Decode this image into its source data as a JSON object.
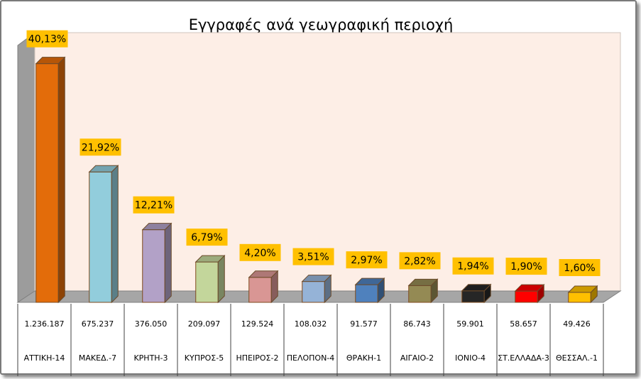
{
  "chart_data": {
    "type": "bar",
    "title": "Εγγραφές ανά γεωγραφική περιοχή",
    "categories": [
      "ΑΤΤΙΚΗ-14",
      "ΜΑΚΕΔ.-7",
      "ΚΡΗΤΗ-3",
      "ΚΥΠΡΟΣ-5",
      "ΗΠΕΙΡΟΣ-2",
      "ΠΕΛΟΠΟΝ-4",
      "ΘΡΑΚΗ-1",
      "ΑΙΓΑΙΟ-2",
      "ΙΟΝΙΟ-4",
      "ΣΤ.ΕΛΛΑΔΑ-3",
      "ΘΕΣΣΑΛ.-1"
    ],
    "values": [
      40.13,
      21.92,
      12.21,
      6.79,
      4.2,
      3.51,
      2.97,
      2.82,
      1.94,
      1.9,
      1.6
    ],
    "value_labels": [
      "40,13%",
      "21,92%",
      "12,21%",
      "6,79%",
      "4,20%",
      "3,51%",
      "2,97%",
      "2,82%",
      "1,94%",
      "1,90%",
      "1,60%"
    ],
    "table_row": [
      "1.236.187",
      "675.237",
      "376.050",
      "209.097",
      "129.524",
      "108.032",
      "91.577",
      "86.743",
      "59.901",
      "58.657",
      "49.426"
    ],
    "ylim": [
      0,
      42
    ],
    "bar_colors": [
      "#e36c0a",
      "#92cddc",
      "#b2a1c7",
      "#c3d69b",
      "#d99694",
      "#95b3d7",
      "#4f81bd",
      "#948a54",
      "#262626",
      "#ff0000",
      "#ffc000"
    ],
    "label_box_color": "#ffc000",
    "plot_background": "#fdeee6",
    "grid": false,
    "legend": "none"
  }
}
